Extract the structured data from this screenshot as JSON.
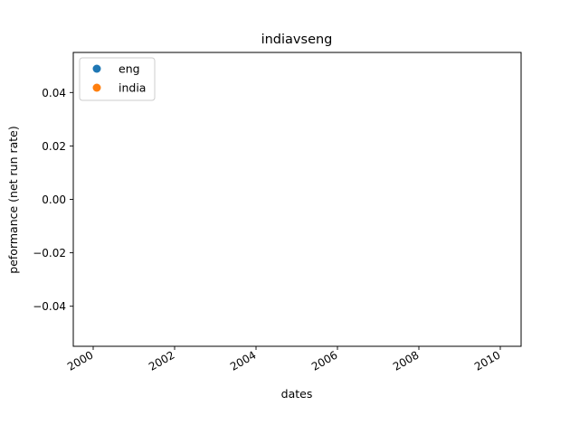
{
  "chart_data": {
    "type": "scatter",
    "title": "indiavseng",
    "xlabel": "dates",
    "ylabel": "peformance (net run rate)",
    "x_ticks": [
      "2000",
      "2002",
      "2004",
      "2006",
      "2008",
      "2010"
    ],
    "y_ticks": [
      "0.04",
      "0.02",
      "0.00",
      "−0.02",
      "−0.04"
    ],
    "y_tick_values": [
      0.04,
      0.02,
      0.0,
      -0.02,
      -0.04
    ],
    "ylim": [
      -0.055,
      0.055
    ],
    "legend_position": "top-left",
    "grid": false,
    "series": [
      {
        "name": "eng",
        "color": "#1f77b4",
        "x": [],
        "y": []
      },
      {
        "name": "india",
        "color": "#ff7f0e",
        "x": [],
        "y": []
      }
    ]
  }
}
